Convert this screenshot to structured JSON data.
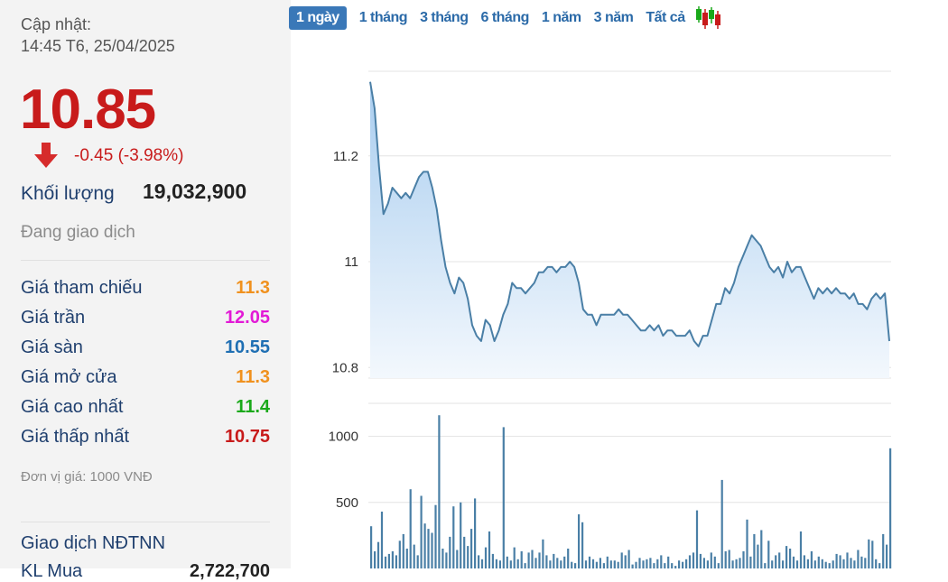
{
  "updated": {
    "label": "Cập nhật:",
    "time": "14:45 T6, 25/04/2025"
  },
  "price": {
    "value": "10.85",
    "change": "-0.45 (-3.98%)"
  },
  "volume": {
    "label": "Khối lượng",
    "value": "19,032,900"
  },
  "status": "Đang giao dịch",
  "stats": [
    {
      "label": "Giá tham chiếu",
      "value": "11.3",
      "color": "#f0911e"
    },
    {
      "label": "Giá trần",
      "value": "12.05",
      "color": "#e21ad6"
    },
    {
      "label": "Giá sàn",
      "value": "10.55",
      "color": "#1f6fb3"
    },
    {
      "label": "Giá mở cửa",
      "value": "11.3",
      "color": "#f0911e"
    },
    {
      "label": "Giá cao nhất",
      "value": "11.4",
      "color": "#1aa91a"
    },
    {
      "label": "Giá thấp nhất",
      "value": "10.75",
      "color": "#c81b1b"
    }
  ],
  "unit_note": "Đơn vị giá: 1000 VNĐ",
  "foreign": {
    "title": "Giao dịch NĐTNN",
    "partial_label": "KL Mua",
    "partial_value": "2,722,700"
  },
  "tabs": [
    {
      "label": "1 ngày",
      "active": true
    },
    {
      "label": "1 tháng",
      "active": false
    },
    {
      "label": "3 tháng",
      "active": false
    },
    {
      "label": "6 tháng",
      "active": false
    },
    {
      "label": "1 năm",
      "active": false
    },
    {
      "label": "3 năm",
      "active": false
    },
    {
      "label": "Tất cả",
      "active": false
    }
  ],
  "icons": {
    "down": "arrow-down-icon",
    "candles": "candlestick-icon"
  },
  "colors": {
    "line": "#4a7fa6",
    "area_top": "#a9cdef",
    "area_bottom": "#f3f8fd",
    "bar": "#4a7fa6",
    "grid": "#e3e3e3"
  },
  "chart_data": [
    {
      "type": "area",
      "title": "",
      "xlabel": "",
      "ylabel": "",
      "ylim": [
        10.78,
        11.36
      ],
      "yticks": [
        10.8,
        11,
        11.2
      ],
      "grid": true,
      "series": [
        {
          "values": [
            11.34,
            11.29,
            11.18,
            11.09,
            11.11,
            11.14,
            11.13,
            11.12,
            11.13,
            11.12,
            11.14,
            11.16,
            11.17,
            11.17,
            11.14,
            11.1,
            11.04,
            10.99,
            10.96,
            10.94,
            10.97,
            10.96,
            10.93,
            10.88,
            10.86,
            10.85,
            10.89,
            10.88,
            10.85,
            10.87,
            10.9,
            10.92,
            10.96,
            10.95,
            10.95,
            10.94,
            10.95,
            10.96,
            10.98,
            10.98,
            10.99,
            10.99,
            10.98,
            10.99,
            10.99,
            11.0,
            10.99,
            10.96,
            10.91,
            10.9,
            10.9,
            10.88,
            10.9,
            10.9,
            10.9,
            10.9,
            10.91,
            10.9,
            10.9,
            10.89,
            10.88,
            10.87,
            10.87,
            10.88,
            10.87,
            10.88,
            10.86,
            10.87,
            10.87,
            10.86,
            10.86,
            10.86,
            10.87,
            10.85,
            10.84,
            10.86,
            10.86,
            10.89,
            10.92,
            10.92,
            10.95,
            10.94,
            10.96,
            10.99,
            11.01,
            11.03,
            11.05,
            11.04,
            11.03,
            11.01,
            10.99,
            10.98,
            10.99,
            10.97,
            11.0,
            10.98,
            10.99,
            10.99,
            10.97,
            10.95,
            10.93,
            10.95,
            10.94,
            10.95,
            10.94,
            10.95,
            10.94,
            10.94,
            10.93,
            10.94,
            10.92,
            10.92,
            10.91,
            10.93,
            10.94,
            10.93,
            10.94,
            10.85
          ]
        }
      ]
    },
    {
      "type": "bar",
      "title": "",
      "xlabel": "",
      "ylabel": "",
      "ylim": [
        0,
        1250
      ],
      "yticks": [
        500,
        1000
      ],
      "grid": true,
      "series": [
        {
          "values": [
            320,
            130,
            200,
            430,
            90,
            110,
            130,
            100,
            210,
            260,
            150,
            600,
            180,
            100,
            550,
            340,
            300,
            270,
            480,
            1160,
            150,
            120,
            240,
            470,
            140,
            500,
            240,
            170,
            300,
            530,
            100,
            70,
            160,
            280,
            110,
            70,
            60,
            1070,
            90,
            60,
            160,
            70,
            130,
            40,
            120,
            140,
            80,
            120,
            220,
            100,
            60,
            110,
            80,
            60,
            90,
            150,
            50,
            40,
            410,
            350,
            60,
            90,
            70,
            50,
            80,
            40,
            90,
            60,
            60,
            50,
            120,
            100,
            140,
            30,
            50,
            80,
            60,
            70,
            80,
            40,
            70,
            100,
            40,
            90,
            40,
            20,
            60,
            50,
            70,
            100,
            120,
            440,
            110,
            80,
            60,
            120,
            90,
            40,
            670,
            130,
            140,
            60,
            70,
            80,
            130,
            370,
            90,
            260,
            180,
            290,
            40,
            210,
            60,
            100,
            120,
            60,
            170,
            150,
            90,
            60,
            280,
            100,
            70,
            130,
            60,
            90,
            70,
            50,
            40,
            60,
            110,
            100,
            70,
            120,
            80,
            60,
            140,
            90,
            80,
            220,
            210,
            70,
            40,
            260,
            180,
            910
          ]
        }
      ]
    }
  ]
}
